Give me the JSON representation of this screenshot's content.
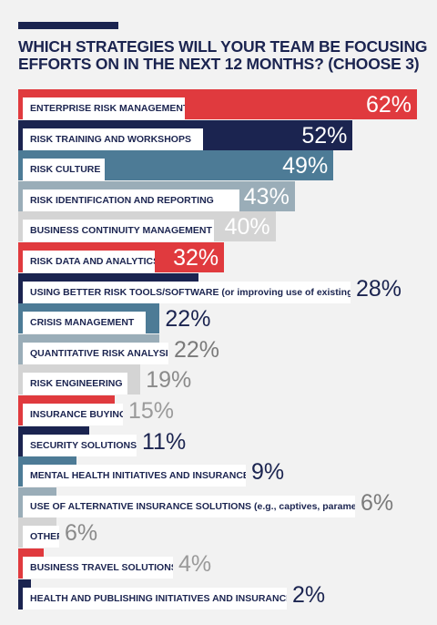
{
  "chart_data": {
    "type": "bar",
    "orientation": "horizontal",
    "title": "WHICH STRATEGIES WILL YOUR TEAM BE FOCUSING EFFORTS ON IN THE NEXT 12 MONTHS? (CHOOSE 3)",
    "xlim": [
      0,
      62
    ],
    "grid": false,
    "categories": [
      "ENTERPRISE RISK MANAGEMENT (ERM)",
      "RISK TRAINING AND WORKSHOPS",
      "RISK CULTURE",
      "RISK IDENTIFICATION AND REPORTING",
      "BUSINESS CONTINUITY MANAGEMENT",
      "RISK DATA AND ANALYTICS",
      "USING BETTER RISK TOOLS/SOFTWARE (or improving use of existing tools)",
      "CRISIS MANAGEMENT",
      "QUANTITATIVE RISK ANALYSIS",
      "RISK ENGINEERING",
      "INSURANCE BUYING",
      "SECURITY SOLUTIONS",
      "MENTAL HEALTH INITIATIVES AND INSURANCE",
      "USE OF ALTERNATIVE INSURANCE SOLUTIONS (e.g., captives, parametrics)",
      "OTHER",
      "BUSINESS TRAVEL SOLUTIONS",
      "HEALTH AND PUBLISHING INITIATIVES AND INSURANCE"
    ],
    "values": [
      62,
      52,
      49,
      43,
      40,
      32,
      28,
      22,
      22,
      19,
      15,
      11,
      9,
      6,
      6,
      4,
      2
    ],
    "value_labels": [
      "62%",
      "52%",
      "49%",
      "43%",
      "40%",
      "32%",
      "28%",
      "22%",
      "22%",
      "19%",
      "15%",
      "11%",
      "9%",
      "6%",
      "6%",
      "4%",
      "2%"
    ],
    "colors": [
      "#e03a3e",
      "#1b2450",
      "#4d7b96",
      "#9aadb8",
      "#d4d4d4",
      "#e03a3e",
      "#1b2450",
      "#4d7b96",
      "#9aadb8",
      "#d4d4d4",
      "#e03a3e",
      "#1b2450",
      "#4d7b96",
      "#9aadb8",
      "#d4d4d4",
      "#e03a3e",
      "#1b2450"
    ]
  }
}
